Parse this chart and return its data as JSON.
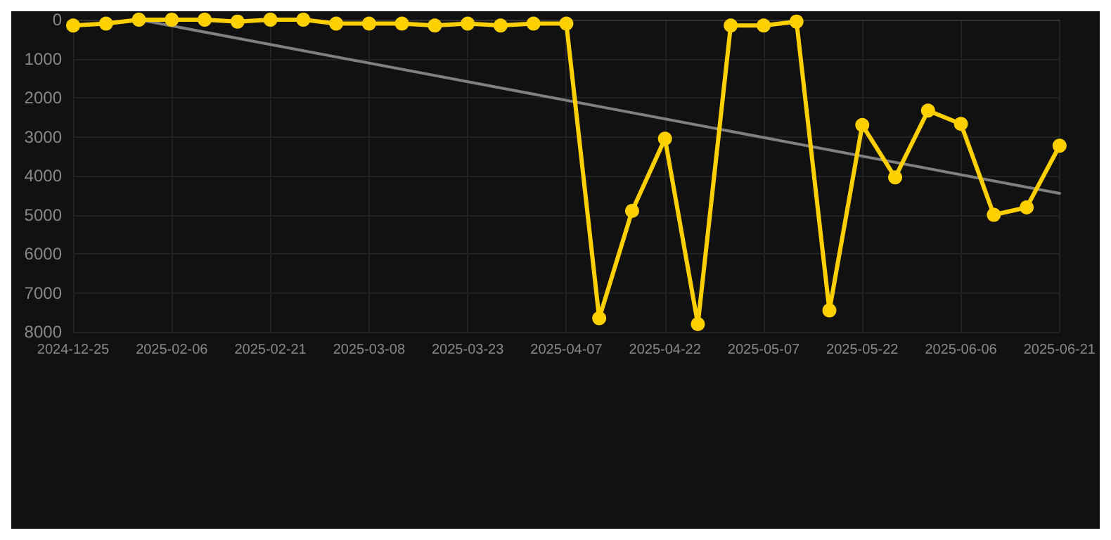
{
  "chart_data": {
    "type": "line",
    "categories": [
      "2024-12-25",
      null,
      null,
      "2025-02-06",
      null,
      null,
      "2025-02-21",
      null,
      null,
      "2025-03-08",
      null,
      null,
      "2025-03-23",
      null,
      null,
      "2025-04-07",
      null,
      null,
      "2025-04-22",
      null,
      null,
      "2025-05-07",
      null,
      null,
      "2025-05-22",
      null,
      null,
      "2025-06-06",
      null,
      null,
      "2025-06-21"
    ],
    "series": [
      {
        "color": "#ffd000",
        "values": [
          150,
          100,
          0,
          0,
          0,
          50,
          0,
          0,
          100,
          100,
          100,
          150,
          100,
          150,
          100,
          100,
          7650,
          4900,
          3050,
          7800,
          150,
          150,
          50,
          7450,
          2700,
          4040,
          2330,
          2670,
          5000,
          4810,
          3230
        ],
        "marker": "circle"
      },
      {
        "color": "#808080",
        "marker": "none",
        "values": [
          null,
          null,
          0,
          null,
          null,
          null,
          null,
          null,
          null,
          null,
          null,
          null,
          null,
          null,
          null,
          null,
          null,
          null,
          null,
          null,
          null,
          null,
          null,
          null,
          null,
          null,
          null,
          null,
          null,
          null,
          4450
        ]
      }
    ],
    "ylim": [
      8000,
      0
    ],
    "yticks": [
      0,
      1000,
      2000,
      3000,
      4000,
      5000,
      6000,
      7000,
      8000
    ],
    "grid": true,
    "line_style": "solid"
  }
}
